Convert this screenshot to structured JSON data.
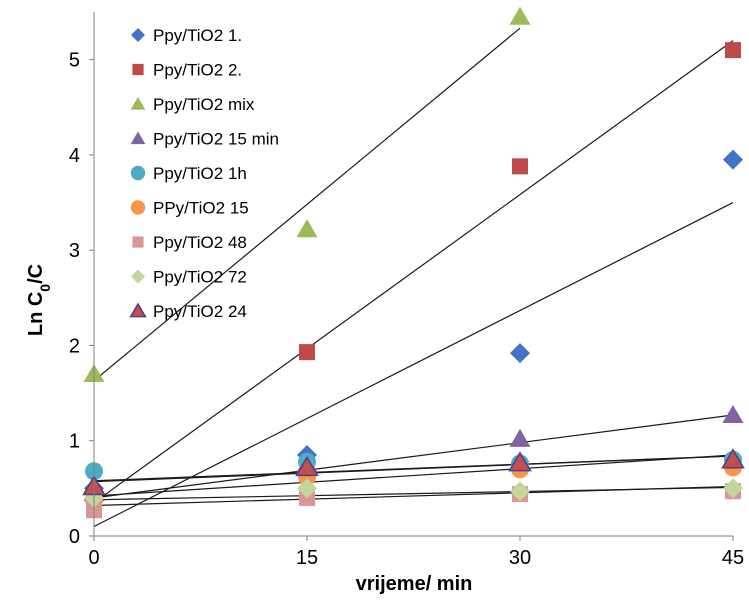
{
  "chart_data": {
    "type": "scatter",
    "xlabel": "vrijeme/ min",
    "ylabel_main": "Ln C",
    "ylabel_sub": "0",
    "ylabel_tail": "/C",
    "xlim": [
      0,
      45
    ],
    "ylim": [
      0,
      5.5
    ],
    "x_ticks": [
      0,
      15,
      30,
      45
    ],
    "y_ticks": [
      0,
      1,
      2,
      3,
      4,
      5
    ],
    "grid": false,
    "legend_position": "top-left",
    "series": [
      {
        "name": "Ppy/TiO2 1.",
        "marker": "diamond",
        "color": "#4472c4",
        "x": [
          0,
          15,
          30,
          45
        ],
        "y": [
          0.5,
          0.85,
          1.92,
          3.95
        ],
        "trend": [
          0.1,
          3.5
        ]
      },
      {
        "name": "Ppy/TiO2 2.",
        "marker": "square",
        "color": "#be4b48",
        "x": [
          0,
          15,
          30,
          45
        ],
        "y": [
          0.35,
          1.93,
          3.88,
          5.1
        ],
        "trend": [
          0.35,
          5.2
        ]
      },
      {
        "name": "Ppy/TiO2 mix",
        "marker": "triangle",
        "color": "#9bbb59",
        "x": [
          0,
          15,
          30,
          45
        ],
        "y": [
          1.7,
          3.22,
          5.45,
          null
        ],
        "trend": [
          1.63,
          5.33
        ],
        "trend_x_end": 30
      },
      {
        "name": "Ppy/TiO2 15 min",
        "marker": "triangle",
        "color": "#8064a2",
        "x": [
          0,
          15,
          30,
          45
        ],
        "y": [
          0.45,
          0.75,
          1.02,
          1.27
        ],
        "trend": [
          0.4,
          1.27
        ]
      },
      {
        "name": "Ppy/TiO2 1h",
        "marker": "circle",
        "color": "#4bacc6",
        "x": [
          0,
          15,
          30,
          45
        ],
        "y": [
          0.68,
          0.78,
          0.76,
          0.8
        ],
        "trend": [
          0.58,
          0.84
        ]
      },
      {
        "name": "PPy/TiO2 15",
        "marker": "circle",
        "color": "#f79646",
        "x": [
          0,
          15,
          30,
          45
        ],
        "y": [
          0.38,
          0.62,
          0.7,
          0.72
        ],
        "trend": [
          0.42,
          0.85
        ]
      },
      {
        "name": "Ppy/TiO2 48",
        "marker": "square",
        "color": "#d99694",
        "x": [
          0,
          15,
          30,
          45
        ],
        "y": [
          0.27,
          0.4,
          0.44,
          0.47
        ],
        "trend": [
          0.32,
          0.52
        ]
      },
      {
        "name": "Ppy/TiO2 72",
        "marker": "diamond",
        "color": "#c3d69b",
        "x": [
          0,
          15,
          30,
          45
        ],
        "y": [
          0.4,
          0.5,
          0.47,
          0.5
        ],
        "trend": [
          0.38,
          0.51
        ]
      },
      {
        "name": "Ppy/TiO2 24",
        "marker": "triangle",
        "color": "#c0504d",
        "edge": "#4f3b8f",
        "x": [
          0,
          15,
          30,
          45
        ],
        "y": [
          0.52,
          0.72,
          0.77,
          0.8
        ],
        "trend": [
          0.57,
          0.84
        ]
      }
    ]
  }
}
